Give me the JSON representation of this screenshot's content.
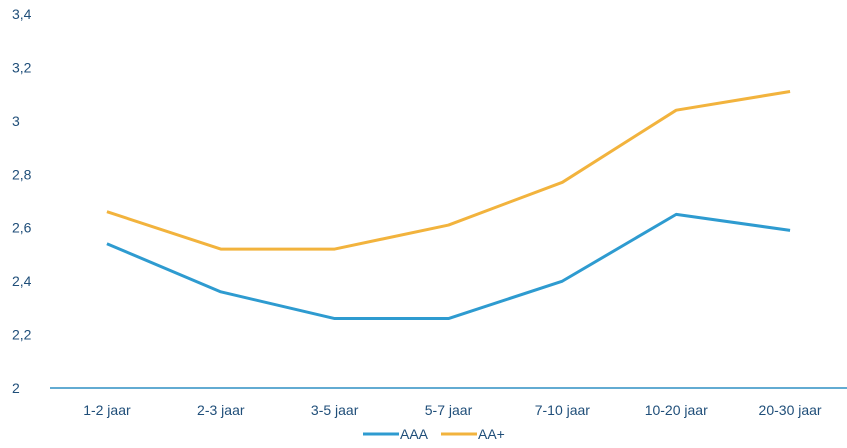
{
  "chart_data": {
    "type": "line",
    "title": "",
    "xlabel": "",
    "ylabel": "",
    "categories": [
      "1-2 jaar",
      "2-3 jaar",
      "3-5 jaar",
      "5-7 jaar",
      "7-10 jaar",
      "10-20 jaar",
      "20-30 jaar"
    ],
    "ylim": [
      2,
      3.4
    ],
    "yticks": [
      2,
      2.2,
      2.4,
      2.6,
      2.8,
      3,
      3.2,
      3.4
    ],
    "ytick_labels": [
      "2",
      "2,2",
      "2,4",
      "2,6",
      "2,8",
      "3",
      "3,2",
      "3,4"
    ],
    "grid": false,
    "legend_position": "bottom",
    "series": [
      {
        "name": "AAA",
        "color": "#2e9bd0",
        "values": [
          2.54,
          2.36,
          2.26,
          2.26,
          2.4,
          2.65,
          2.59
        ]
      },
      {
        "name": "AA+",
        "color": "#f2b33d",
        "values": [
          2.66,
          2.52,
          2.52,
          2.61,
          2.77,
          3.04,
          3.11
        ]
      }
    ],
    "axis_color": "#2e8fc4",
    "text_color": "#1f4e79"
  }
}
